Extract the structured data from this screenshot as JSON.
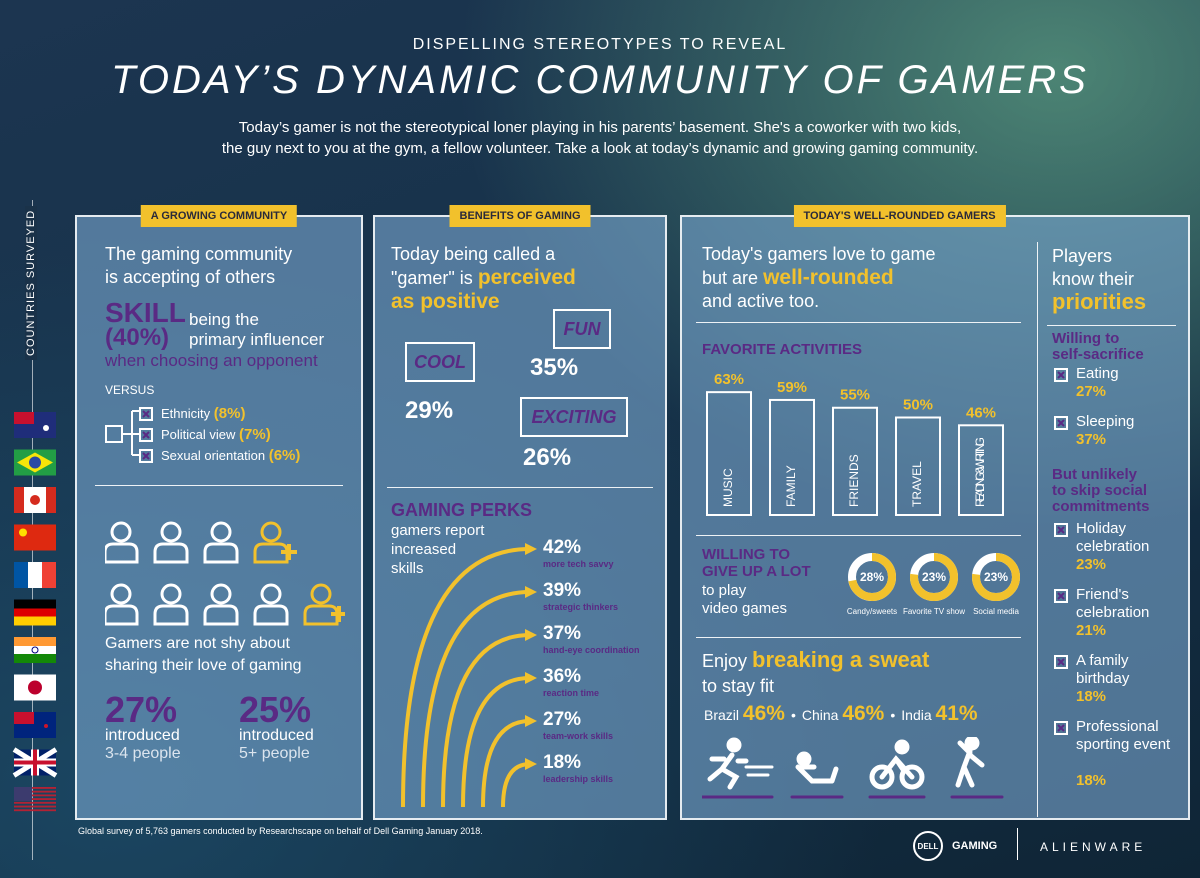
{
  "header": {
    "kicker": "DISPELLING STEREOTYPES TO REVEAL",
    "title": "TODAY’S DYNAMIC COMMUNITY OF GAMERS",
    "intro_line1": "Today’s gamer is not the stereotypical loner playing in his parents’ basement. She's a coworker with two kids,",
    "intro_line2": "the guy next to you at the gym, a fellow volunteer. Take a look at today’s dynamic and growing gaming community."
  },
  "sidebar": {
    "label": "COUNTRIES SURVEYED"
  },
  "growing": {
    "tab": "A GROWING COMMUNITY",
    "heading_line1": "The gaming community",
    "heading_line2": "is accepting of others",
    "skill": "SKILL",
    "skill_pct": "(40%)",
    "skill_line1": "being the",
    "skill_line2": "primary influencer",
    "skill_line3": "when choosing an opponent",
    "versus": "VERSUS",
    "factors": [
      {
        "label": "Ethnicity",
        "pct": "(8%)"
      },
      {
        "label": "Political view",
        "pct": "(7%)"
      },
      {
        "label": "Sexual orientation",
        "pct": "(6%)"
      }
    ],
    "sharing_line1": "Gamers are not shy about",
    "sharing_line2": "sharing their love of gaming",
    "introduced": [
      {
        "pct": "27%",
        "label": "introduced",
        "detail": "3-4 people"
      },
      {
        "pct": "25%",
        "label": "introduced",
        "detail": "5+ people"
      }
    ]
  },
  "benefits": {
    "tab": "BENEFITS OF GAMING",
    "heading_line1": "Today being called a",
    "heading_line2": "\"gamer\" is",
    "heading_highlight1": "perceived",
    "heading_highlight2": "as positive",
    "bubbles": [
      {
        "word": "COOL",
        "pct": "29%"
      },
      {
        "word": "FUN",
        "pct": "35%"
      },
      {
        "word": "EXCITING",
        "pct": "26%"
      }
    ],
    "perks_title": "GAMING PERKS",
    "perks_line1": "gamers report",
    "perks_line2": "increased",
    "perks_line3": "skills",
    "perks": [
      {
        "pct": "42%",
        "label": "more tech savvy"
      },
      {
        "pct": "39%",
        "label": "strategic thinkers"
      },
      {
        "pct": "37%",
        "label": "hand-eye coordination"
      },
      {
        "pct": "36%",
        "label": "reaction time"
      },
      {
        "pct": "27%",
        "label": "team-work skills"
      },
      {
        "pct": "18%",
        "label": "leadership skills"
      }
    ]
  },
  "rounded": {
    "tab": "TODAY'S WELL-ROUNDED GAMERS",
    "heading_line1": "Today's gamers love to game",
    "heading_line2": "but are",
    "heading_highlight": "well-rounded",
    "heading_line3": "and active too.",
    "activities": {
      "title": "FAVORITE ACTIVITIES",
      "labels": [
        "MUSIC",
        "FAMILY",
        "FRIENDS",
        "TRAVEL",
        "READING & WRITING"
      ],
      "values": [
        63,
        59,
        55,
        50,
        46
      ],
      "value_labels": [
        "63%",
        "59%",
        "55%",
        "50%",
        "46%"
      ]
    },
    "give_up": {
      "line1": "WILLING TO",
      "line2": "GIVE UP A LOT",
      "line3": "to play",
      "line4": "video games",
      "labels": [
        "Candy/sweets",
        "Favorite TV show",
        "Social media"
      ],
      "values": [
        28,
        23,
        23
      ],
      "value_labels": [
        "28%",
        "23%",
        "23%"
      ]
    },
    "sweat": {
      "enjoy": "Enjoy",
      "highlight": "breaking a sweat",
      "line2": "to stay fit",
      "countries": [
        {
          "name": "Brazil",
          "pct": "46%"
        },
        {
          "name": "China",
          "pct": "46%"
        },
        {
          "name": "India",
          "pct": "41%"
        }
      ]
    }
  },
  "priorities": {
    "line1": "Players",
    "line2": "know their",
    "highlight": "priorities",
    "sacrifice_line1": "Willing to",
    "sacrifice_line2": "self-sacrifice",
    "sacrifice_items": [
      {
        "label": "Eating",
        "pct": "27%"
      },
      {
        "label": "Sleeping",
        "pct": "37%"
      }
    ],
    "social_line1": "But unlikely",
    "social_line2": "to skip social",
    "social_line3": "commitments",
    "social_items": [
      {
        "label": "Holiday celebration",
        "pct": "23%"
      },
      {
        "label": "Friend's celebration",
        "pct": "21%"
      },
      {
        "label": "A family birthday",
        "pct": "18%"
      },
      {
        "label": "Professional sporting event",
        "pct": "18%"
      }
    ]
  },
  "footer": {
    "note": "Global survey of 5,763 gamers conducted by Researchscape on behalf of Dell Gaming January 2018.",
    "dell": "DELL",
    "gaming": "GAMING",
    "alienware": "ALIENWARE"
  }
}
